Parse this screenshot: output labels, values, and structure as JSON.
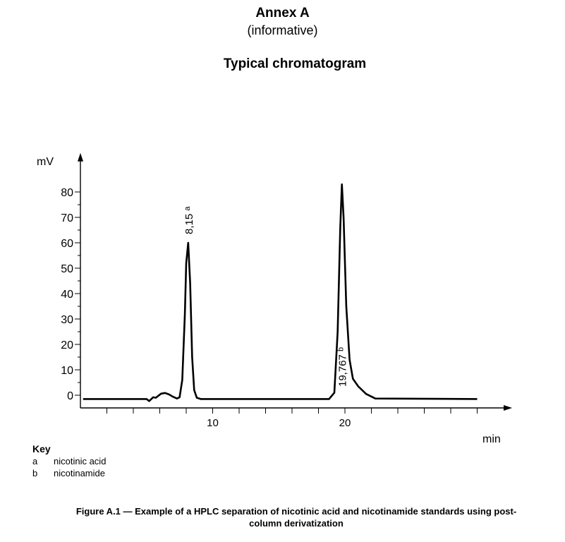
{
  "header": {
    "annex": "Annex A",
    "subtitle": "(informative)",
    "title": "Typical chromatogram"
  },
  "chart_data": {
    "type": "line",
    "ylabel": "mV",
    "xlabel": "min",
    "xlim": [
      0,
      32
    ],
    "ylim": [
      -5,
      92
    ],
    "x_ticks": [
      10,
      20
    ],
    "y_ticks": [
      0,
      10,
      20,
      30,
      40,
      50,
      60,
      70,
      80
    ],
    "baseline_mV": -1.5,
    "series": [
      {
        "x": [
          0.2,
          5.0,
          5.2,
          5.5,
          5.7,
          5.9,
          6.1,
          6.4,
          6.7,
          7.0,
          7.3,
          7.5,
          7.7,
          7.9,
          8.0,
          8.15,
          8.3,
          8.45,
          8.6,
          8.8,
          9.1,
          9.6,
          18.8,
          19.2,
          19.45,
          19.65,
          19.77,
          19.9,
          20.1,
          20.35,
          20.6,
          21.0,
          21.6,
          22.3,
          30.0
        ],
        "y": [
          -1.5,
          -1.5,
          -2.3,
          -0.8,
          -1.0,
          -0.2,
          0.6,
          0.9,
          0.3,
          -0.6,
          -1.3,
          -0.8,
          6,
          32,
          52,
          60,
          44,
          15,
          2,
          -1.0,
          -1.5,
          -1.5,
          -1.5,
          1,
          25,
          66,
          83,
          70,
          35,
          14,
          6.5,
          3.5,
          0.5,
          -1.3,
          -1.5
        ]
      }
    ],
    "annotations": [
      {
        "x": 8.15,
        "text": "8,15",
        "sup": "a"
      },
      {
        "x": 19.767,
        "text": "19,767",
        "sup": "b"
      }
    ]
  },
  "key": {
    "heading": "Key",
    "items": [
      {
        "letter": "a",
        "label": "nicotinic acid"
      },
      {
        "letter": "b",
        "label": "nicotinamide"
      }
    ]
  },
  "caption": {
    "line1": "Figure A.1 — Example of a HPLC separation of nicotinic acid and nicotinamide standards using post-",
    "line2": "column derivatization"
  }
}
